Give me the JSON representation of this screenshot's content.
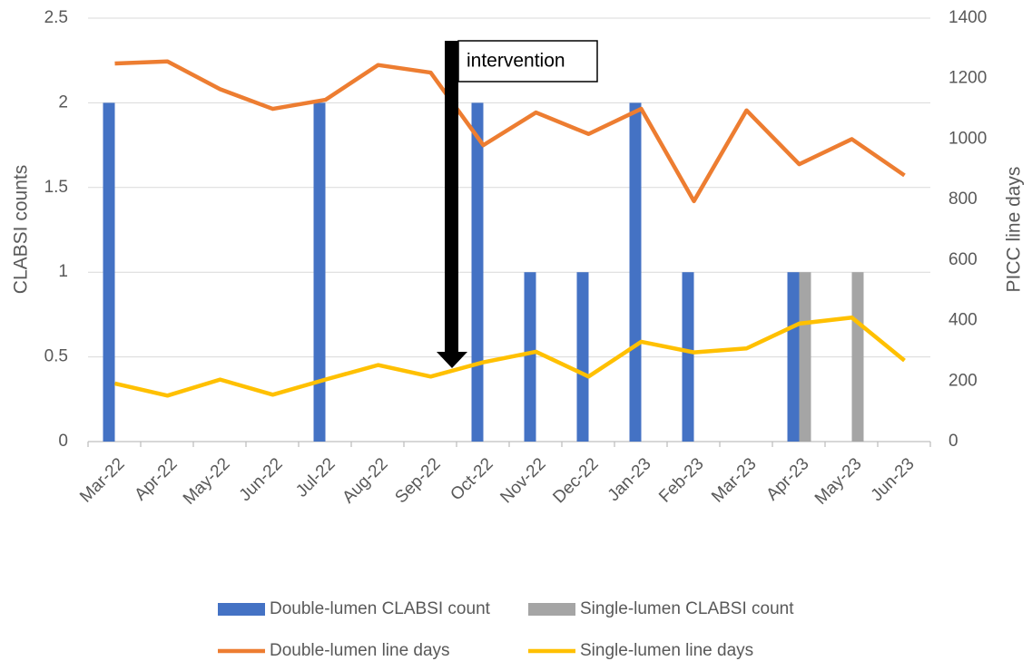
{
  "chart_data": {
    "type": "bar",
    "categories": [
      "Mar-22",
      "Apr-22",
      "May-22",
      "Jun-22",
      "Jul-22",
      "Aug-22",
      "Sep-22",
      "Oct-22",
      "Nov-22",
      "Dec-22",
      "Jan-23",
      "Feb-23",
      "Mar-23",
      "Apr-23",
      "May-23",
      "Jun-23"
    ],
    "series": [
      {
        "name": "Double-lumen CLABSI count",
        "type": "bar",
        "color": "#4472c4",
        "values": [
          2,
          0,
          0,
          0,
          2,
          0,
          0,
          2,
          1,
          1,
          2,
          1,
          0,
          1,
          0,
          0
        ]
      },
      {
        "name": "Single-lumen CLABSI count",
        "type": "bar",
        "color": "#a5a5a5",
        "values": [
          0,
          0,
          0,
          0,
          0,
          0,
          0,
          0,
          0,
          0,
          0,
          0,
          0,
          1,
          1,
          0
        ]
      },
      {
        "name": "Double-lumen line days",
        "type": "line",
        "axis": "y2",
        "color": "#ed7d31",
        "values": [
          1250,
          1257,
          1165,
          1100,
          1130,
          1245,
          1220,
          980,
          1088,
          1017,
          1100,
          795,
          1095,
          917,
          1000,
          880
        ]
      },
      {
        "name": "Single-lumen line days",
        "type": "line",
        "axis": "y2",
        "color": "#ffc000",
        "values": [
          192,
          152,
          205,
          155,
          205,
          253,
          215,
          262,
          297,
          215,
          330,
          295,
          308,
          390,
          410,
          268
        ]
      }
    ],
    "ylabel": "CLABSI counts",
    "y2label": "PICC line days",
    "ylim": [
      0,
      2.5
    ],
    "yticks": [
      0,
      0.5,
      1,
      1.5,
      2,
      2.5
    ],
    "y2lim": [
      0,
      1400
    ],
    "y2ticks": [
      0,
      200,
      400,
      600,
      800,
      1000,
      1200,
      1400
    ],
    "annotation": "intervention",
    "grid": true,
    "legend": "bottom"
  }
}
